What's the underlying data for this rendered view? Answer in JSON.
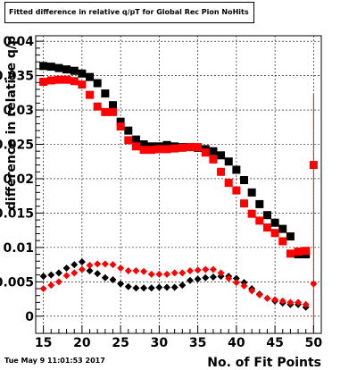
{
  "header": {
    "title": "Fitted difference in relative q/pT for Global Rec Pion NoHits"
  },
  "footer": {
    "timestamp": "Tue May  9 11:01:53 2017"
  },
  "chart_data": {
    "type": "scatter",
    "title": "Fitted difference in relative q/pT for Global Rec Pion NoHits",
    "xlabel": "No. of Fit Points",
    "ylabel": "difference in relative q/p",
    "xlim": [
      14,
      51
    ],
    "ylim": [
      -0.0025,
      0.0408
    ],
    "x_ticks": [
      15,
      20,
      25,
      30,
      35,
      40,
      45,
      50
    ],
    "y_ticks": [
      0,
      0.005,
      0.01,
      0.015,
      0.02,
      0.025,
      0.03,
      0.035,
      0.04
    ],
    "y_tick_labels": [
      "0",
      "0.005",
      "0.01",
      "0.015",
      "0.02",
      "0.025",
      "0.03",
      "0.035",
      "0.04"
    ],
    "grid": true,
    "colors": {
      "black": "#000000",
      "red": "#ff0000"
    },
    "series": [
      {
        "color": "#000000",
        "marker": "square",
        "x": [
          15,
          16,
          17,
          18,
          19,
          20,
          21,
          22,
          23,
          24,
          25,
          26,
          27,
          28,
          29,
          30,
          31,
          32,
          33,
          34,
          35,
          36,
          37,
          38,
          39,
          40,
          41,
          42,
          43,
          44,
          45,
          46,
          47,
          48,
          49
        ],
        "y": [
          0.0364,
          0.0363,
          0.0361,
          0.0359,
          0.0357,
          0.0353,
          0.0348,
          0.0339,
          0.0324,
          0.0307,
          0.0283,
          0.027,
          0.0257,
          0.025,
          0.0247,
          0.0247,
          0.0249,
          0.0247,
          0.0246,
          0.0246,
          0.0245,
          0.0243,
          0.024,
          0.0234,
          0.0225,
          0.0213,
          0.0198,
          0.018,
          0.0163,
          0.0147,
          0.0136,
          0.0127,
          0.0116,
          0.009,
          0.009
        ]
      },
      {
        "color": "#ff0000",
        "marker": "square",
        "x": [
          15,
          16,
          17,
          18,
          19,
          20,
          21,
          22,
          23,
          24,
          25,
          26,
          27,
          28,
          29,
          30,
          31,
          32,
          33,
          34,
          35,
          36,
          37,
          38,
          39,
          40,
          41,
          42,
          43,
          44,
          45,
          46,
          47,
          48,
          49,
          50
        ],
        "y": [
          0.0341,
          0.0343,
          0.0344,
          0.0344,
          0.0342,
          0.0337,
          0.0322,
          0.0305,
          0.0297,
          0.0297,
          0.0276,
          0.0256,
          0.0247,
          0.0242,
          0.0242,
          0.0243,
          0.0243,
          0.0244,
          0.0245,
          0.0246,
          0.0246,
          0.0238,
          0.0228,
          0.021,
          0.0194,
          0.0183,
          0.0164,
          0.0149,
          0.0139,
          0.0129,
          0.0121,
          0.0109,
          0.0091,
          0.0094,
          0.0095,
          0.022
        ]
      },
      {
        "color": "#000000",
        "marker": "diamond",
        "x": [
          15,
          16,
          17,
          18,
          19,
          20,
          21,
          22,
          23,
          24,
          25,
          26,
          27,
          28,
          29,
          30,
          31,
          32,
          33,
          34,
          35,
          36,
          37,
          38,
          39,
          40,
          41,
          42,
          43,
          44,
          45,
          46,
          47,
          48,
          49
        ],
        "y": [
          0.0058,
          0.006,
          0.0063,
          0.007,
          0.0075,
          0.0079,
          0.0066,
          0.0062,
          0.0056,
          0.0053,
          0.0047,
          0.0043,
          0.0041,
          0.0041,
          0.0041,
          0.0042,
          0.0042,
          0.0042,
          0.0045,
          0.0052,
          0.0054,
          0.0056,
          0.0057,
          0.0058,
          0.0058,
          0.0055,
          0.0049,
          0.004,
          0.0032,
          0.0026,
          0.0022,
          0.0019,
          0.0017,
          0.0017,
          0.0013
        ]
      },
      {
        "color": "#ff0000",
        "marker": "diamond",
        "x": [
          15,
          16,
          17,
          18,
          19,
          20,
          21,
          22,
          23,
          24,
          25,
          26,
          27,
          28,
          29,
          30,
          31,
          32,
          33,
          34,
          35,
          36,
          37,
          38,
          39,
          40,
          41,
          42,
          43,
          44,
          45,
          46,
          47,
          48,
          49,
          50
        ],
        "y": [
          0.004,
          0.0045,
          0.005,
          0.0059,
          0.0063,
          0.0068,
          0.0074,
          0.0076,
          0.0076,
          0.0075,
          0.007,
          0.0066,
          0.0066,
          0.0065,
          0.0061,
          0.0061,
          0.0061,
          0.0063,
          0.0063,
          0.0066,
          0.0067,
          0.0068,
          0.0068,
          0.0063,
          0.0055,
          0.0049,
          0.0044,
          0.0037,
          0.0031,
          0.0026,
          0.0024,
          0.0022,
          0.002,
          0.002,
          0.0017,
          0.0047
        ]
      }
    ]
  }
}
